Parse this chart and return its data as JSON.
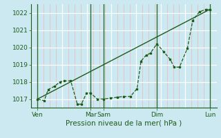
{
  "xlabel": "Pression niveau de la mer( hPa )",
  "bg_color": "#cce8f0",
  "grid_color_major": "#ffffff",
  "grid_color_minor": "#e8b8b8",
  "line_color": "#1a5c1a",
  "dark_line_color": "#2d6e2d",
  "ylim": [
    1016.5,
    1022.5
  ],
  "yticks": [
    1017,
    1018,
    1019,
    1020,
    1021,
    1022
  ],
  "xlim": [
    0,
    14
  ],
  "xtick_major_pos": [
    0.5,
    4.5,
    5.5,
    9.5,
    13.5
  ],
  "xtick_major_labels": [
    "Ven",
    "Mar",
    "Sam",
    "Dim",
    "Lun"
  ],
  "dark_vlines": [
    0.5,
    4.5,
    5.5,
    9.5,
    13.5
  ],
  "minor_vlines_count": 28,
  "trend_x": [
    0.5,
    13.5
  ],
  "trend_y": [
    1017.0,
    1022.2
  ],
  "data_x": [
    0.5,
    1.0,
    1.3,
    1.8,
    2.2,
    2.5,
    3.0,
    3.5,
    3.8,
    4.2,
    4.5,
    5.0,
    5.5,
    6.0,
    6.5,
    7.0,
    7.5,
    8.0,
    8.3,
    8.7,
    9.0,
    9.5,
    10.0,
    10.5,
    10.8,
    11.2,
    11.8,
    12.2,
    12.7,
    13.2,
    13.5
  ],
  "data_y": [
    1017.0,
    1016.9,
    1017.55,
    1017.75,
    1018.0,
    1018.05,
    1018.05,
    1016.7,
    1016.7,
    1017.35,
    1017.35,
    1017.0,
    1017.0,
    1017.05,
    1017.1,
    1017.15,
    1017.15,
    1017.6,
    1019.2,
    1019.55,
    1019.65,
    1020.2,
    1019.75,
    1019.3,
    1018.85,
    1018.85,
    1019.95,
    1021.55,
    1022.05,
    1022.2,
    1022.2
  ],
  "xlabel_fontsize": 7.5,
  "tick_fontsize": 6.5
}
